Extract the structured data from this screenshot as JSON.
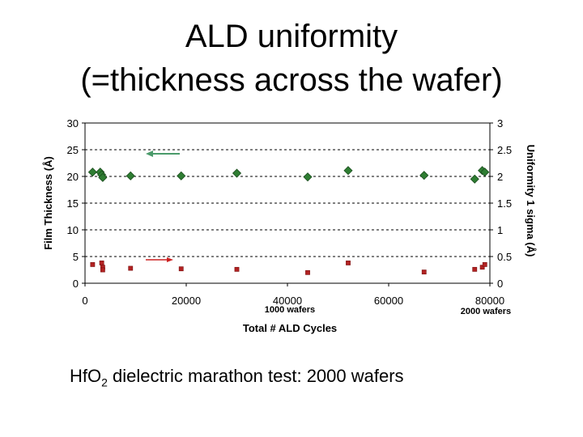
{
  "slide": {
    "title_line1": "ALD uniformity",
    "title_line2": "(=thickness across the wafer)",
    "caption_pre": "Hf",
    "caption_o": "O",
    "caption_sub": "2",
    "caption_post": " dielectric marathon test: 2000 wafers"
  },
  "chart_data": {
    "type": "scatter",
    "xlabel": "Total # ALD Cycles",
    "ylabel": "Film Thickness (Å)",
    "y2label": "Uniformity 1 sigma (Å)",
    "xlim": [
      0,
      80000
    ],
    "ylim": [
      0,
      30
    ],
    "y2lim": [
      0,
      3
    ],
    "xticks": [
      "0",
      "20000",
      "40000",
      "60000",
      "80000"
    ],
    "yticks": [
      "0",
      "5",
      "10",
      "15",
      "20",
      "25",
      "30"
    ],
    "y2ticks": [
      "0",
      "0.5",
      "1",
      "1.5",
      "2",
      "2.5",
      "3"
    ],
    "grid": "horizontal dashed",
    "annotations": [
      {
        "text": "1000 wafers",
        "x": 40000
      },
      {
        "text": "2000 wafers",
        "x": 80000
      }
    ],
    "colors": {
      "thickness": "#2e7d32",
      "uniformity": "#b22222",
      "left_arrow": "#4a9a6a",
      "right_arrow": "#cc2222"
    },
    "series": [
      {
        "axis": "left",
        "marker": "diamond",
        "x": [
          1500,
          3000,
          3300,
          3500,
          9000,
          19000,
          30000,
          44000,
          52000,
          67000,
          77000,
          78500,
          79000
        ],
        "y": [
          20.8,
          20.8,
          20.3,
          19.8,
          20.1,
          20.1,
          20.6,
          19.9,
          21.1,
          20.2,
          19.5,
          21.1,
          20.8
        ]
      },
      {
        "axis": "right",
        "marker": "square",
        "x": [
          1500,
          3300,
          3500,
          3500,
          9000,
          19000,
          30000,
          44000,
          52000,
          67000,
          77000,
          78500,
          79000
        ],
        "y": [
          0.35,
          0.38,
          0.3,
          0.25,
          0.28,
          0.27,
          0.26,
          0.2,
          0.38,
          0.21,
          0.26,
          0.3,
          0.35
        ]
      }
    ]
  }
}
